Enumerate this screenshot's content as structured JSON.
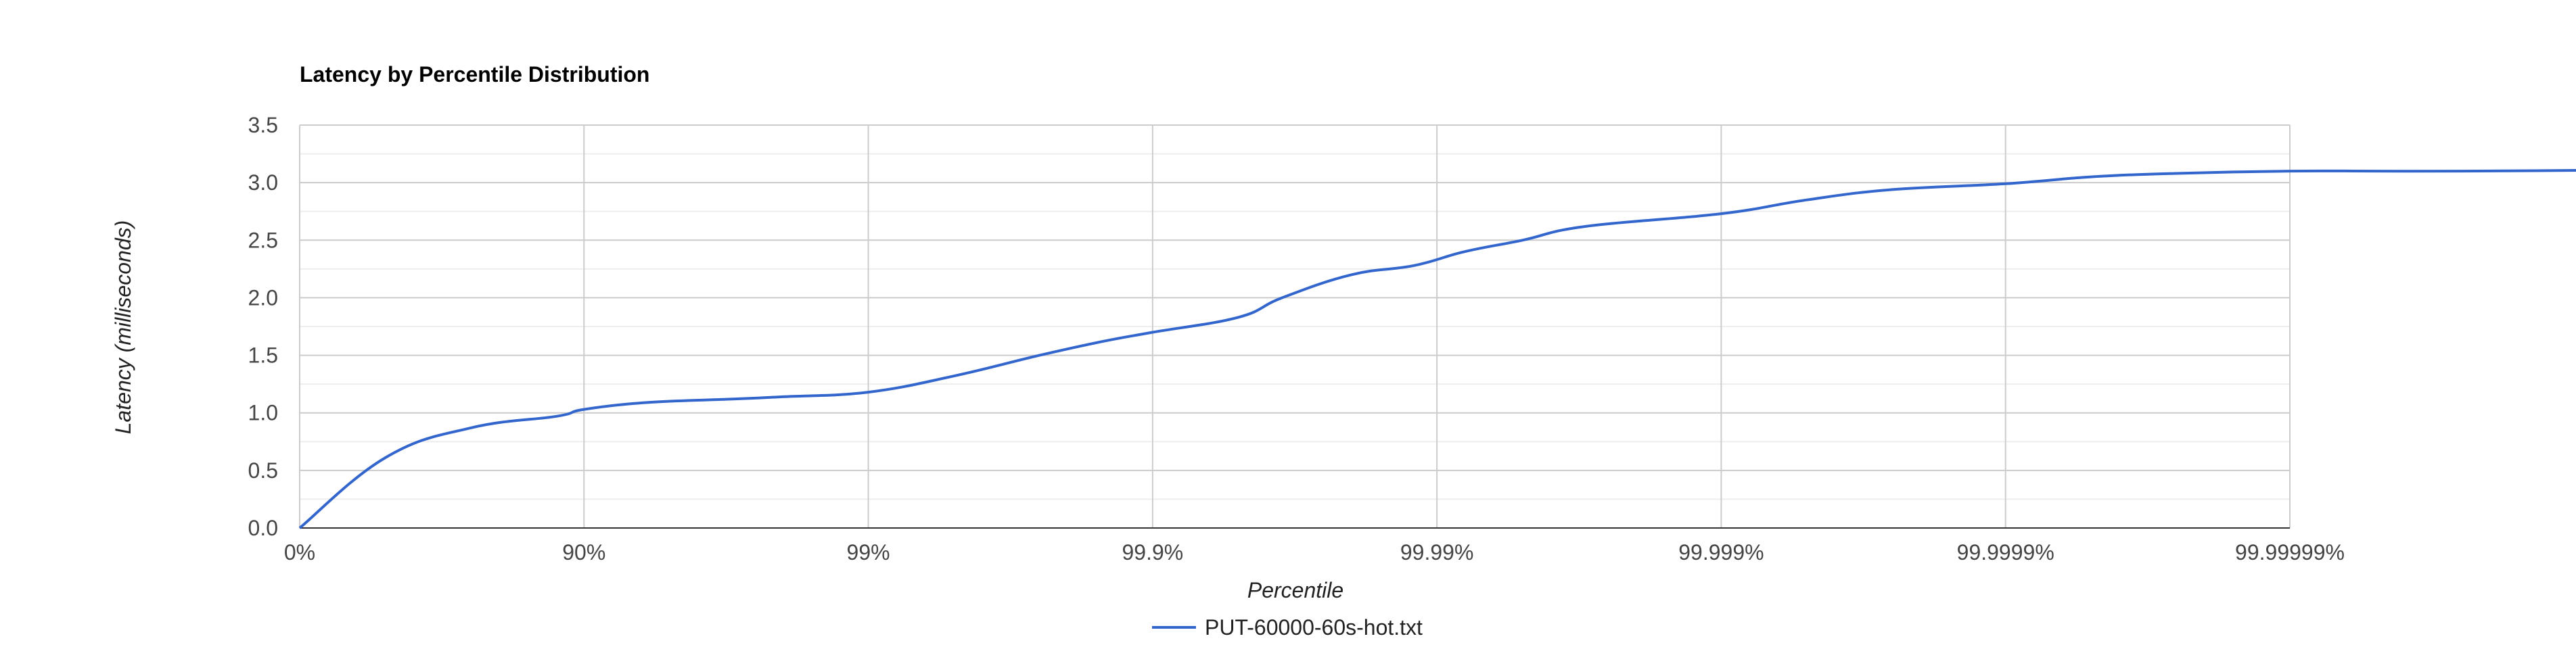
{
  "chart_data": {
    "type": "line",
    "title": "Latency by Percentile Distribution",
    "xlabel": "Percentile",
    "ylabel": "Latency (milliseconds)",
    "x_scale": "percentile-log (nines)",
    "x_ticks": [
      "0%",
      "90%",
      "99%",
      "99.9%",
      "99.99%",
      "99.999%",
      "99.9999%",
      "99.99999%"
    ],
    "y_ticks": [
      "0.0",
      "0.5",
      "1.0",
      "1.5",
      "2.0",
      "2.5",
      "3.0",
      "3.5"
    ],
    "ylim": [
      0,
      3.5
    ],
    "grid": true,
    "legend_position": "bottom",
    "series": [
      {
        "name": "PUT-60000-60s-hot.txt",
        "color": "#3366cc",
        "x": [
          0,
          0.5,
          0.75,
          0.875,
          0.9,
          0.94,
          0.97,
          0.98,
          0.99,
          0.995,
          0.9975,
          0.9985,
          0.999,
          0.9995,
          0.99965,
          0.9998,
          0.99988,
          0.99992,
          0.99995,
          0.99997,
          0.99999,
          0.999995,
          0.9999975,
          0.999999,
          0.9999995,
          0.99999975,
          0.9999999,
          0.99999995,
          0.999999975,
          0.999999994
        ],
        "y": [
          0.0,
          0.61,
          0.87,
          0.97,
          1.03,
          1.09,
          1.12,
          1.14,
          1.18,
          1.32,
          1.5,
          1.62,
          1.7,
          1.83,
          2.0,
          2.2,
          2.28,
          2.4,
          2.5,
          2.62,
          2.73,
          2.85,
          2.94,
          2.99,
          3.05,
          3.08,
          3.1,
          3.1,
          3.1,
          3.11
        ]
      }
    ]
  }
}
